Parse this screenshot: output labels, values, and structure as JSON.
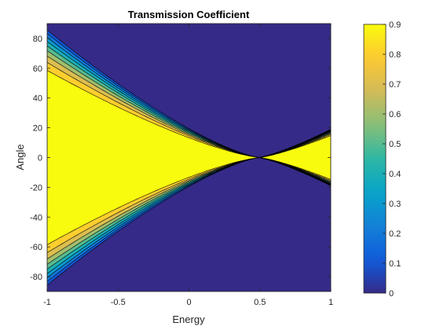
{
  "chart_data": {
    "type": "heatmap",
    "subtype": "filled-contour",
    "title": "Transmission Coefficient",
    "xlabel": "Energy",
    "ylabel": "Angle",
    "xlim": [
      -1,
      1
    ],
    "ylim": [
      -90,
      90
    ],
    "x_ticks": [
      "-1",
      "-0.5",
      "0",
      "0.5",
      "1"
    ],
    "y_ticks": [
      "80",
      "60",
      "40",
      "20",
      "0",
      "-20",
      "-40",
      "-60",
      "-80"
    ],
    "colorbar": {
      "position": "right",
      "range": [
        0,
        0.9
      ],
      "ticks": [
        "0.9",
        "0.8",
        "0.7",
        "0.6",
        "0.5",
        "0.4",
        "0.3",
        "0.2",
        "0.1",
        "0"
      ],
      "colormap": "parula"
    },
    "contour_levels": [
      0,
      0.1,
      0.2,
      0.3,
      0.4,
      0.5,
      0.6,
      0.7,
      0.8,
      0.9
    ],
    "features": {
      "dirac_point_energy": 0.5,
      "left_lobe_energy_range": [
        -1,
        0.5
      ],
      "right_lobe_energy_range": [
        0.5,
        1
      ],
      "background_value": 0
    },
    "grid": false
  }
}
